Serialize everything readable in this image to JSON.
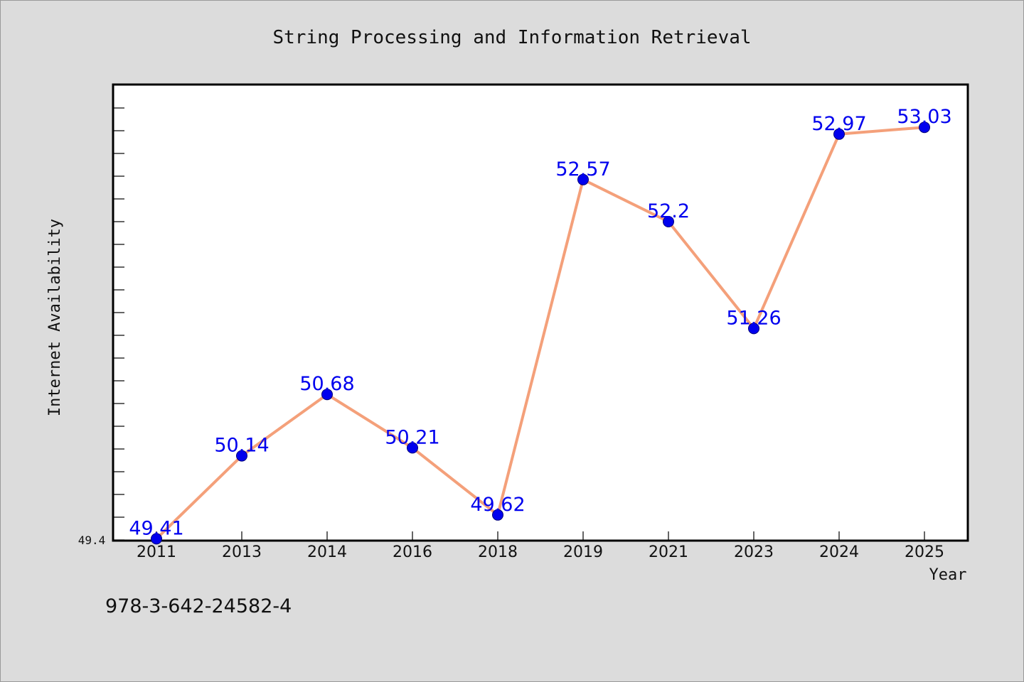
{
  "chart_data": {
    "type": "line",
    "title": "String Processing and Information Retrieval",
    "xlabel": "Year",
    "ylabel": "Internet Availability",
    "categories": [
      "2011",
      "2013",
      "2014",
      "2016",
      "2018",
      "2019",
      "2021",
      "2023",
      "2024",
      "2025"
    ],
    "series": [
      {
        "values": [
          49.41,
          50.14,
          50.68,
          50.21,
          49.62,
          52.57,
          52.2,
          51.26,
          52.97,
          53.03
        ],
        "labels": [
          "49.41",
          "50.14",
          "50.68",
          "50.21",
          "49.62",
          "52.57",
          "52.2",
          "51.26",
          "52.97",
          "53.03"
        ]
      }
    ],
    "ylim": [
      49.4,
      53.4
    ],
    "ytick_label": "49.4",
    "grid": false,
    "colors": {
      "line": "#f4a07a",
      "marker": "#0000ee",
      "label": "#0000ee",
      "background": "#dcdcdc",
      "plot_bg": "#ffffff"
    }
  },
  "footer_text": "978-3-642-24582-4"
}
